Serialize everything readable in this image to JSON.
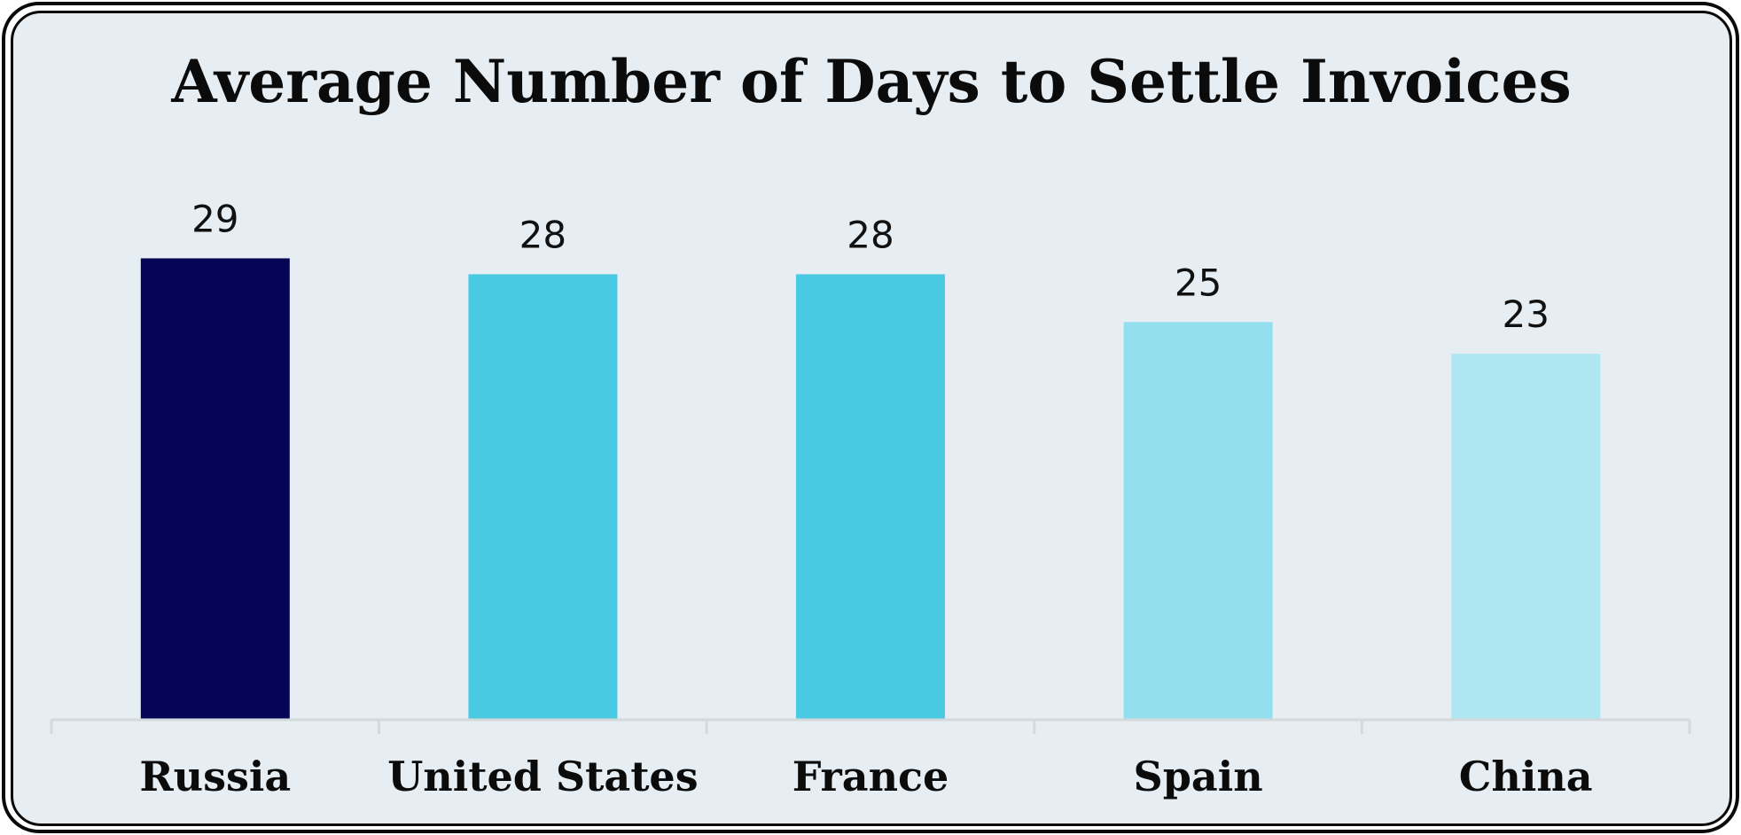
{
  "chart_data": {
    "type": "bar",
    "title": "Average Number of Days to Settle Invoices",
    "xlabel": "",
    "ylabel": "",
    "categories": [
      "Russia",
      "United States",
      "France",
      "Spain",
      "China"
    ],
    "values": [
      29,
      28,
      28,
      25,
      23
    ],
    "bar_colors": [
      "#050556",
      "#49c9e2",
      "#49c9e2",
      "#93dfee",
      "#aee7f1"
    ],
    "ylim": [
      0,
      29
    ],
    "grid": false,
    "legend": "none",
    "data_labels": true
  },
  "colors": {
    "background": "#e6eef3",
    "frame": "#0a0a0a",
    "axis": "#d4d9dc"
  }
}
